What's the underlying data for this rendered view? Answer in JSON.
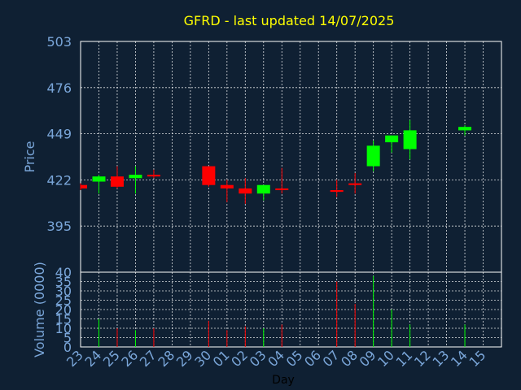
{
  "chart_data": {
    "type": "candlestick",
    "title": "GFRD - last updated 14/07/2025",
    "xlabel": "Day",
    "ylabel": "Price",
    "volume_label": "Volume (0000)",
    "price_ticks": [
      395,
      422,
      449,
      476,
      503
    ],
    "volume_ticks": [
      0,
      5,
      10,
      15,
      20,
      25,
      30,
      35,
      40
    ],
    "ylim": [
      368,
      503
    ],
    "volume_ylim": [
      0,
      40
    ],
    "x_ticks": [
      "23",
      "24",
      "25",
      "26",
      "27",
      "28",
      "29",
      "30",
      "01",
      "02",
      "03",
      "04",
      "05",
      "06",
      "07",
      "08",
      "09",
      "10",
      "11",
      "12",
      "13",
      "14",
      "15"
    ],
    "colors": {
      "up": "#00ff00",
      "down": "#ff0000"
    },
    "candles": [
      {
        "day": "23",
        "open": 419,
        "high": 420,
        "low": 416,
        "close": 417,
        "volume": 0
      },
      {
        "day": "24",
        "open": 421,
        "high": 425,
        "low": 414,
        "close": 424,
        "volume": 15
      },
      {
        "day": "25",
        "open": 424,
        "high": 430,
        "low": 417,
        "close": 418,
        "volume": 10
      },
      {
        "day": "26",
        "open": 423,
        "high": 430,
        "low": 414,
        "close": 425,
        "volume": 9
      },
      {
        "day": "27",
        "open": 425,
        "high": 428,
        "low": 423,
        "close": 424,
        "volume": 10
      },
      {
        "day": "30",
        "open": 430,
        "high": 430,
        "low": 418,
        "close": 419,
        "volume": 14
      },
      {
        "day": "01",
        "open": 419,
        "high": 422,
        "low": 409,
        "close": 417,
        "volume": 9
      },
      {
        "day": "02",
        "open": 417,
        "high": 423,
        "low": 408,
        "close": 414,
        "volume": 11
      },
      {
        "day": "03",
        "open": 414,
        "high": 419,
        "low": 410,
        "close": 419,
        "volume": 10
      },
      {
        "day": "04",
        "open": 417,
        "high": 429,
        "low": 414,
        "close": 416,
        "volume": 12
      },
      {
        "day": "07",
        "open": 416,
        "high": 422,
        "low": 412,
        "close": 415,
        "volume": 35
      },
      {
        "day": "08",
        "open": 420,
        "high": 426,
        "low": 414,
        "close": 419,
        "volume": 23
      },
      {
        "day": "09",
        "open": 430,
        "high": 445,
        "low": 427,
        "close": 442,
        "volume": 38
      },
      {
        "day": "10",
        "open": 444,
        "high": 448,
        "low": 438,
        "close": 448,
        "volume": 20
      },
      {
        "day": "11",
        "open": 440,
        "high": 457,
        "low": 434,
        "close": 451,
        "volume": 12
      },
      {
        "day": "14",
        "open": 451,
        "high": 454,
        "low": 448,
        "close": 453,
        "volume": 12
      }
    ]
  }
}
